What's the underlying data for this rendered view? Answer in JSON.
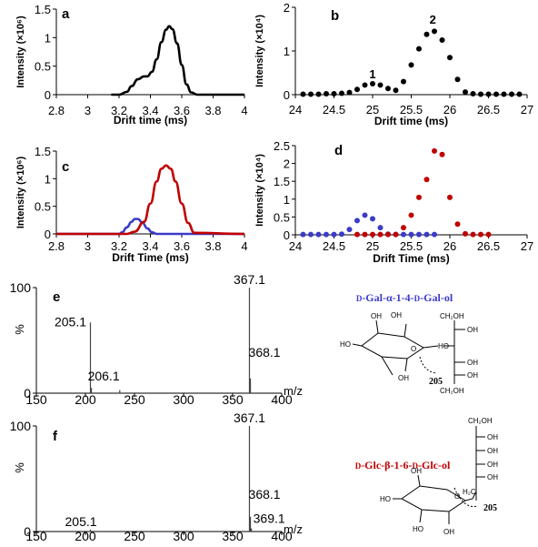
{
  "colors": {
    "black": "#000000",
    "blue": "#3b3bc8",
    "red": "#c00000"
  },
  "chart_data": [
    {
      "panel": "a",
      "type": "line",
      "xlabel": "Drift time (ms)",
      "ylabel": "Intensity (×10⁶)",
      "xlim": [
        2.8,
        4
      ],
      "ylim": [
        0,
        1.5
      ],
      "xticks": [
        2.8,
        3,
        3.2,
        3.4,
        3.6,
        3.8,
        4
      ],
      "xtick_labels": [
        "2.8",
        "3",
        "3.2",
        "3.4",
        "3.6",
        "3.8",
        "4"
      ],
      "yticks": [
        0,
        0.5,
        1,
        1.5
      ],
      "ytick_labels": [
        "0",
        "0.5",
        "1",
        "1.5"
      ],
      "series": [
        {
          "color": "#000000",
          "x": [
            3.15,
            3.2,
            3.25,
            3.28,
            3.32,
            3.36,
            3.38,
            3.41,
            3.44,
            3.47,
            3.5,
            3.52,
            3.54,
            3.57,
            3.6,
            3.63,
            3.66,
            3.7,
            4.0
          ],
          "y": [
            0,
            0.0,
            0.05,
            0.15,
            0.27,
            0.32,
            0.32,
            0.4,
            0.62,
            0.92,
            1.14,
            1.2,
            1.15,
            0.9,
            0.52,
            0.18,
            0.04,
            0,
            0
          ]
        }
      ]
    },
    {
      "panel": "b",
      "type": "scatter",
      "xlabel": "Drift time (ms)",
      "ylabel": "Intensity (×10⁴)",
      "xlim": [
        24,
        27
      ],
      "ylim": [
        0,
        2
      ],
      "xticks": [
        24,
        24.5,
        25,
        25.5,
        26,
        26.5,
        27
      ],
      "xtick_labels": [
        "24",
        "24.5",
        "25",
        "25.5",
        "26",
        "26.5",
        "27"
      ],
      "yticks": [
        0,
        1,
        2
      ],
      "ytick_labels": [
        "0",
        "1",
        "2"
      ],
      "annotations": [
        {
          "text": "1",
          "x": 25.0,
          "y": 0.38
        },
        {
          "text": "2",
          "x": 25.78,
          "y": 1.62
        }
      ],
      "series": [
        {
          "color": "#000000",
          "x": [
            24.1,
            24.2,
            24.3,
            24.4,
            24.5,
            24.6,
            24.7,
            24.8,
            24.9,
            25.0,
            25.1,
            25.2,
            25.3,
            25.4,
            25.5,
            25.6,
            25.7,
            25.8,
            25.9,
            26.0,
            26.1,
            26.2,
            26.3,
            26.4,
            26.5,
            26.6,
            26.7,
            26.8,
            26.9
          ],
          "y": [
            0.01,
            0.01,
            0.01,
            0.02,
            0.02,
            0.03,
            0.05,
            0.12,
            0.22,
            0.25,
            0.22,
            0.14,
            0.1,
            0.3,
            0.68,
            1.05,
            1.38,
            1.45,
            1.25,
            0.85,
            0.35,
            0.06,
            0.02,
            0.01,
            0.01,
            0.01,
            0.01,
            0.01,
            0.01
          ]
        }
      ]
    },
    {
      "panel": "c",
      "type": "line",
      "xlabel": "Drift Time (ms)",
      "ylabel": "Intensity (×10⁶)",
      "xlim": [
        2.8,
        4
      ],
      "ylim": [
        0,
        1.5
      ],
      "xticks": [
        2.8,
        3,
        3.2,
        3.4,
        3.6,
        3.8,
        4
      ],
      "xtick_labels": [
        "2.8",
        "3",
        "3.2",
        "3.4",
        "3.6",
        "3.8",
        "4"
      ],
      "yticks": [
        0,
        0.5,
        1,
        1.5
      ],
      "ytick_labels": [
        "0",
        "0.5",
        "1",
        "1.5"
      ],
      "series": [
        {
          "color": "#3b3bc8",
          "x": [
            2.8,
            3.2,
            3.22,
            3.25,
            3.28,
            3.3,
            3.32,
            3.35,
            3.38,
            3.41,
            3.44,
            4.0
          ],
          "y": [
            0,
            0,
            0.03,
            0.12,
            0.22,
            0.27,
            0.27,
            0.2,
            0.1,
            0.03,
            0,
            0
          ]
        },
        {
          "color": "#c00000",
          "x": [
            2.8,
            3.25,
            3.3,
            3.36,
            3.4,
            3.44,
            3.47,
            3.5,
            3.53,
            3.56,
            3.6,
            3.64,
            3.68,
            4.0
          ],
          "y": [
            0,
            0,
            0.04,
            0.22,
            0.55,
            0.95,
            1.18,
            1.24,
            1.18,
            0.95,
            0.55,
            0.2,
            0.02,
            0
          ]
        }
      ]
    },
    {
      "panel": "d",
      "type": "scatter",
      "xlabel": "Drift Time (ms)",
      "ylabel": "Intensity (×10⁴)",
      "xlim": [
        24,
        27
      ],
      "ylim": [
        0,
        2.5
      ],
      "xticks": [
        24,
        24.5,
        25,
        25.5,
        26,
        26.5,
        27
      ],
      "xtick_labels": [
        "24",
        "24.5",
        "25",
        "25.5",
        "26",
        "26.5",
        "27"
      ],
      "yticks": [
        0,
        0.5,
        1,
        1.5,
        2,
        2.5
      ],
      "ytick_labels": [
        "0",
        "0.5",
        "1",
        "1.5",
        "2",
        "2.5"
      ],
      "series": [
        {
          "color": "#3b3bc8",
          "x": [
            24.1,
            24.2,
            24.3,
            24.4,
            24.5,
            24.6,
            24.7,
            24.8,
            24.9,
            25.0,
            25.1,
            25.2,
            25.3,
            25.4,
            25.5,
            25.6,
            25.7,
            25.8
          ],
          "y": [
            0.01,
            0.01,
            0.01,
            0.01,
            0.01,
            0.02,
            0.15,
            0.4,
            0.55,
            0.45,
            0.2,
            0.02,
            0.01,
            0.01,
            0.01,
            0.01,
            0.01,
            0.01
          ]
        },
        {
          "color": "#c00000",
          "x": [
            24.8,
            24.9,
            25.0,
            25.1,
            25.2,
            25.3,
            25.4,
            25.5,
            25.6,
            25.7,
            25.8,
            25.9,
            26.0,
            26.1,
            26.2,
            26.3,
            26.4,
            26.5
          ],
          "y": [
            0.01,
            0.01,
            0.01,
            0.01,
            0.01,
            0.01,
            0.2,
            0.55,
            1.05,
            1.55,
            2.35,
            2.25,
            1.05,
            0.3,
            0.03,
            0.01,
            0.01,
            0.01
          ]
        }
      ]
    },
    {
      "panel": "e",
      "type": "bar",
      "xlabel": "m/z",
      "ylabel": "%",
      "xlim": [
        150,
        400
      ],
      "ylim": [
        0,
        100
      ],
      "xticks": [
        150,
        200,
        250,
        300,
        350,
        400
      ],
      "xtick_labels": [
        "150",
        "200",
        "250",
        "300",
        "350",
        "400"
      ],
      "yticks": [
        0,
        100
      ],
      "ytick_labels": [
        "0",
        "100"
      ],
      "peaks": [
        {
          "x": 205.1,
          "y": 67,
          "label": "205.1"
        },
        {
          "x": 206.1,
          "y": 5,
          "label": "206.1"
        },
        {
          "x": 235.0,
          "y": 3,
          "label": ""
        },
        {
          "x": 367.1,
          "y": 100,
          "label": "367.1"
        },
        {
          "x": 368.1,
          "y": 14,
          "label": "368.1"
        }
      ],
      "structure": {
        "name_parts": [
          "D",
          "-Gal-α-1-4-",
          "D",
          "-Gal-ol"
        ],
        "fragment": "205"
      }
    },
    {
      "panel": "f",
      "type": "bar",
      "xlabel": "m/z",
      "ylabel": "%",
      "xlim": [
        150,
        400
      ],
      "ylim": [
        0,
        100
      ],
      "xticks": [
        150,
        200,
        250,
        300,
        350,
        400
      ],
      "xtick_labels": [
        "150",
        "200",
        "250",
        "300",
        "350",
        "400"
      ],
      "yticks": [
        0,
        100
      ],
      "ytick_labels": [
        "0",
        "100"
      ],
      "peaks": [
        {
          "x": 205.1,
          "y": 2,
          "label": "205.1"
        },
        {
          "x": 367.1,
          "y": 100,
          "label": "367.1"
        },
        {
          "x": 368.1,
          "y": 14,
          "label": "368.1"
        },
        {
          "x": 369.1,
          "y": 3,
          "label": "369.1"
        }
      ],
      "structure": {
        "name_parts": [
          "D",
          "-Glc-β-1-6-",
          "D",
          "-Glc-ol"
        ],
        "fragment": "205"
      }
    }
  ]
}
